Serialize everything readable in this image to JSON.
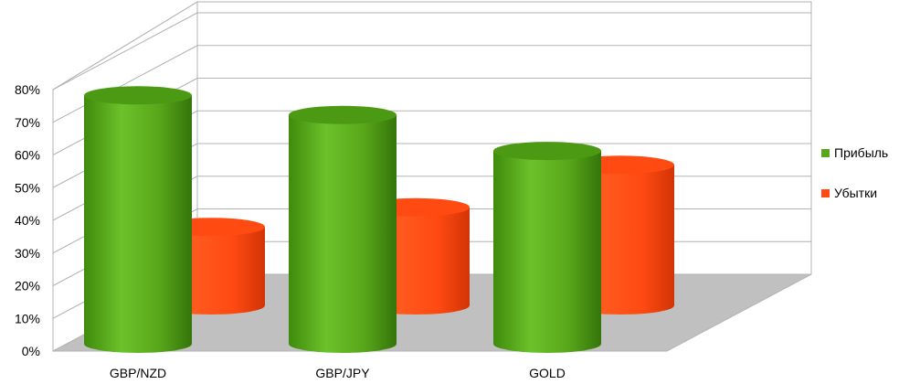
{
  "chart_data": {
    "type": "bar",
    "style": "3d-cylinder",
    "categories": [
      "GBP/NZD",
      "GBP/JPY",
      "GOLD"
    ],
    "series": [
      {
        "name": "Прибыль",
        "values": [
          76,
          70,
          59
        ],
        "color": "#5aa81a"
      },
      {
        "name": "Убытки",
        "values": [
          24,
          30,
          43
        ],
        "color": "#ff4a12"
      }
    ],
    "yticks": [
      "0%",
      "10%",
      "20%",
      "30%",
      "40%",
      "50%",
      "60%",
      "70%",
      "80%"
    ],
    "ylim": [
      0,
      80
    ],
    "grid": true,
    "legend": "right",
    "floor_color": "#c0c0c0"
  }
}
